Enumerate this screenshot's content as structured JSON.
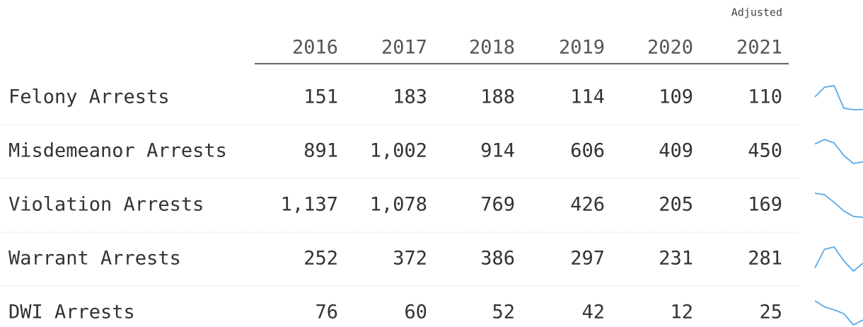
{
  "header": {
    "note": "Adjusted",
    "years": [
      "2016",
      "2017",
      "2018",
      "2019",
      "2020",
      "2021"
    ]
  },
  "table": {
    "rows": [
      {
        "label": "Felony Arrests",
        "values": [
          151,
          183,
          188,
          114,
          109,
          110
        ],
        "value_labels": [
          "151",
          "183",
          "188",
          "114",
          "109",
          "110"
        ]
      },
      {
        "label": "Misdemeanor Arrests",
        "values": [
          891,
          1002,
          914,
          606,
          409,
          450
        ],
        "value_labels": [
          "891",
          "1,002",
          "914",
          "606",
          "409",
          "450"
        ]
      },
      {
        "label": "Violation Arrests",
        "values": [
          1137,
          1078,
          769,
          426,
          205,
          169
        ],
        "value_labels": [
          "1,137",
          "1,078",
          "769",
          "426",
          "205",
          "169"
        ]
      },
      {
        "label": "Warrant Arrests",
        "values": [
          252,
          372,
          386,
          297,
          231,
          281
        ],
        "value_labels": [
          "252",
          "372",
          "386",
          "297",
          "231",
          "281"
        ]
      },
      {
        "label": "DWI Arrests",
        "values": [
          76,
          60,
          52,
          42,
          12,
          25
        ],
        "value_labels": [
          "76",
          "60",
          "52",
          "42",
          "12",
          "25"
        ]
      }
    ],
    "sparkline_color": "#5aa9e6"
  }
}
